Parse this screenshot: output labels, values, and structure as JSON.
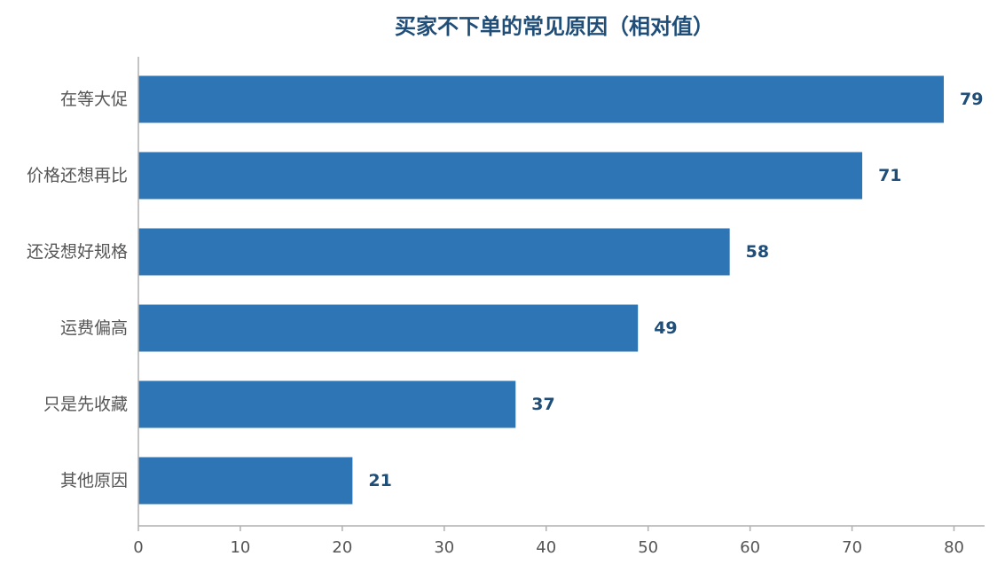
{
  "chart_data": {
    "type": "bar",
    "orientation": "horizontal",
    "title": "买家不下单的常见原因（相对值）",
    "categories": [
      "在等大促",
      "价格还想再比",
      "还没想好规格",
      "运费偏高",
      "只是先收藏",
      "其他原因"
    ],
    "values": [
      79,
      71,
      58,
      49,
      37,
      21
    ],
    "xlabel": "",
    "ylabel": "",
    "xlim": [
      0,
      83
    ],
    "xticks": [
      0,
      10,
      20,
      30,
      40,
      50,
      60,
      70,
      80
    ],
    "grid": false,
    "legend": "none",
    "colors": {
      "bar": "#2e75b6",
      "title": "#1f4e79",
      "data_label": "#1f4e79",
      "axis_text": "#555555",
      "axis_line": "#b0b0b0"
    }
  }
}
